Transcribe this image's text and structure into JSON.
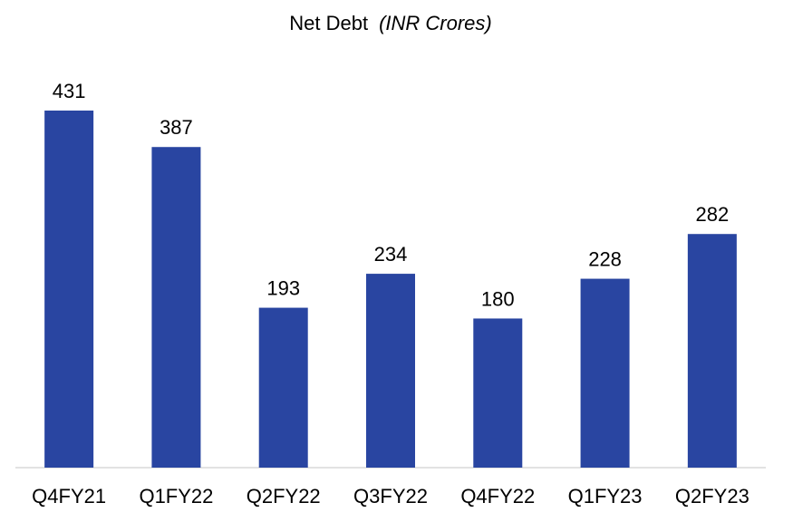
{
  "chart_data": {
    "type": "bar",
    "title": "Net Debt",
    "title_unit": "(INR Crores)",
    "categories": [
      "Q4FY21",
      "Q1FY22",
      "Q2FY22",
      "Q3FY22",
      "Q4FY22",
      "Q1FY23",
      "Q2FY23"
    ],
    "values": [
      431,
      387,
      193,
      234,
      180,
      228,
      282
    ],
    "color": "#2945a1"
  }
}
